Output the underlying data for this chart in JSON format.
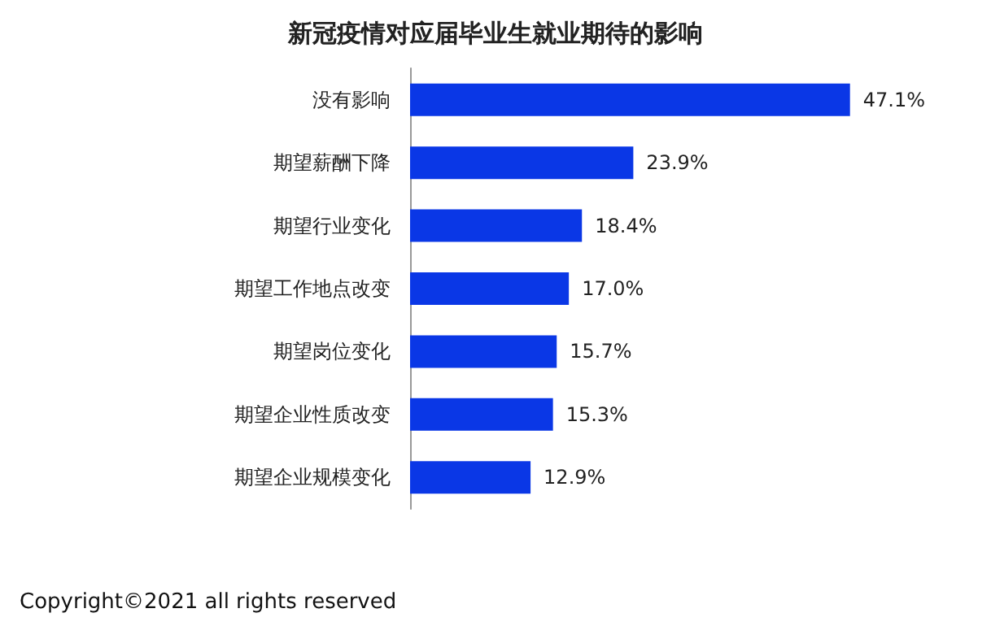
{
  "chart_data": {
    "type": "bar",
    "orientation": "horizontal",
    "title": "新冠疫情对应届毕业生就业期待的影响",
    "categories": [
      "没有影响",
      "期望薪酬下降",
      "期望行业变化",
      "期望工作地点改变",
      "期望岗位变化",
      "期望企业性质改变",
      "期望企业规模变化"
    ],
    "values": [
      47.1,
      23.9,
      18.4,
      17.0,
      15.7,
      15.3,
      12.9
    ],
    "value_labels": [
      "47.1%",
      "23.9%",
      "18.4%",
      "17.0%",
      "15.7%",
      "15.3%",
      "12.9%"
    ],
    "color": "#0a37e6",
    "annotations": [
      "Copyright©2021 all rights reserved"
    ]
  }
}
